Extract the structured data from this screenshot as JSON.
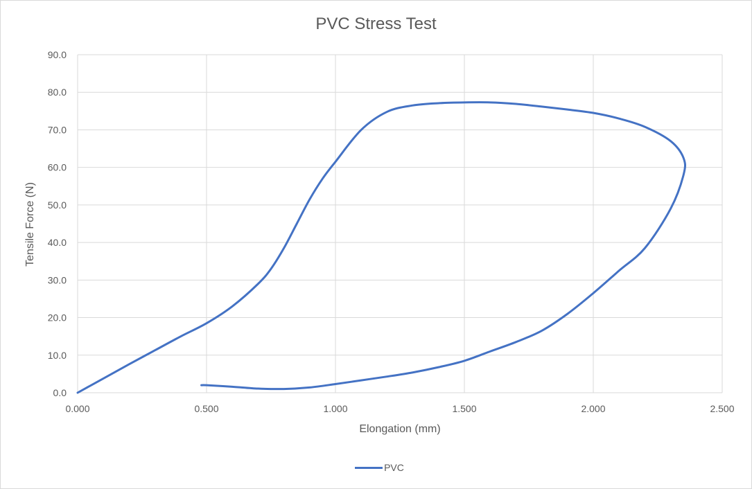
{
  "chart_data": {
    "type": "scatter",
    "title": "PVC Stress Test",
    "xlabel": "Elongation (mm)",
    "ylabel": "Tensile Force (N)",
    "xlim": [
      0,
      2.5
    ],
    "ylim": [
      0,
      90
    ],
    "x_ticks": [
      "0.000",
      "0.500",
      "1.000",
      "1.500",
      "2.000",
      "2.500"
    ],
    "y_ticks": [
      "0.0",
      "10.0",
      "20.0",
      "30.0",
      "40.0",
      "50.0",
      "60.0",
      "70.0",
      "80.0",
      "90.0"
    ],
    "grid": true,
    "legend_position": "bottom",
    "series": [
      {
        "name": "PVC",
        "color": "#4472c4",
        "x": [
          0.0,
          0.1,
          0.2,
          0.3,
          0.4,
          0.5,
          0.6,
          0.7,
          0.75,
          0.8,
          0.85,
          0.9,
          0.95,
          1.0,
          1.1,
          1.2,
          1.3,
          1.4,
          1.5,
          1.6,
          1.7,
          1.8,
          1.9,
          2.0,
          2.1,
          2.2,
          2.3,
          2.35,
          2.35,
          2.3,
          2.2,
          2.1,
          2.0,
          1.9,
          1.8,
          1.7,
          1.6,
          1.5,
          1.4,
          1.3,
          1.2,
          1.1,
          1.0,
          0.9,
          0.8,
          0.7,
          0.6,
          0.5,
          0.48
        ],
        "y": [
          0.0,
          3.8,
          7.6,
          11.3,
          15.0,
          18.5,
          23.0,
          29.0,
          33.0,
          38.5,
          45.0,
          51.5,
          57.0,
          61.5,
          70.0,
          74.8,
          76.5,
          77.1,
          77.3,
          77.3,
          76.9,
          76.2,
          75.4,
          74.5,
          73.0,
          70.8,
          67.0,
          62.5,
          58.0,
          49.0,
          38.5,
          32.5,
          26.5,
          21.0,
          16.5,
          13.5,
          11.0,
          8.5,
          6.8,
          5.4,
          4.3,
          3.3,
          2.3,
          1.4,
          1.0,
          1.1,
          1.6,
          2.0,
          2.0
        ]
      }
    ]
  }
}
